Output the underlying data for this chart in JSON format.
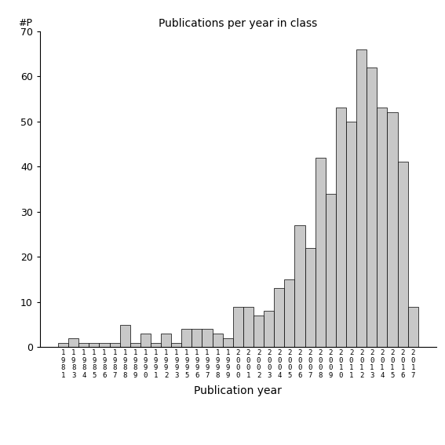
{
  "title": "Publications per year in class",
  "xlabel": "Publication year",
  "ylabel": "#P",
  "bar_color": "#c8c8c8",
  "bar_edgecolor": "#000000",
  "ylim": [
    0,
    70
  ],
  "yticks": [
    0,
    10,
    20,
    30,
    40,
    50,
    60,
    70
  ],
  "years": [
    1981,
    1983,
    1984,
    1985,
    1986,
    1987,
    1988,
    1989,
    1990,
    1991,
    1992,
    1993,
    1995,
    1996,
    1997,
    1998,
    1999,
    2000,
    2001,
    2002,
    2003,
    2004,
    2005,
    2006,
    2007,
    2008,
    2009,
    2010,
    2011,
    2012,
    2013,
    2014,
    2015,
    2016,
    2017
  ],
  "values": [
    1,
    2,
    1,
    1,
    1,
    1,
    5,
    1,
    3,
    1,
    3,
    1,
    4,
    4,
    4,
    3,
    2,
    9,
    9,
    7,
    8,
    13,
    15,
    27,
    22,
    42,
    34,
    53,
    50,
    66,
    62,
    53,
    52,
    41,
    9
  ]
}
